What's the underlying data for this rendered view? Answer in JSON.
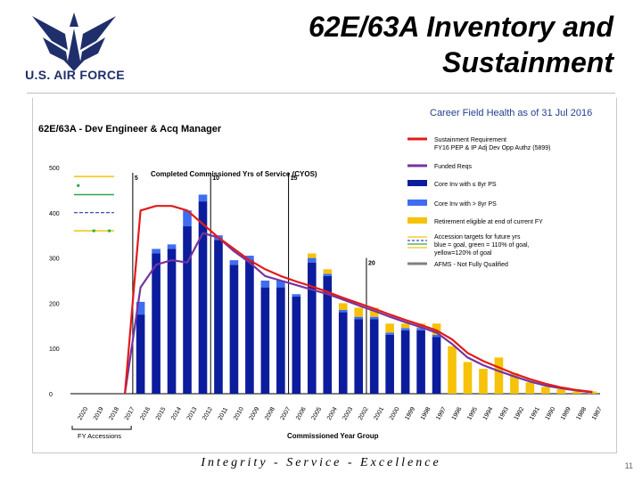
{
  "header": {
    "logo_text": "U.S. AIR FORCE",
    "title_line1": "62E/63A Inventory and",
    "title_line2": "Sustainment"
  },
  "footer": {
    "motto": "Integrity - Service - Excellence",
    "page_number": "11"
  },
  "chart_data": {
    "type": "bar",
    "title": "62E/63A - Dev Engineer & Acq Manager",
    "subtitle": "Career Field Health as of 31 Jul 2016",
    "plot_label": "Completed Commissioned Yrs of Service (CYOS)",
    "xlabel": "Commissioned Year Group",
    "ylabel": "",
    "accession_label": "FY Accessions",
    "ylim": [
      0,
      500
    ],
    "yticks": [
      0,
      100,
      200,
      300,
      400,
      500
    ],
    "categories": [
      "2020",
      "2019",
      "2018",
      "2017",
      "2016",
      "2015",
      "2014",
      "2013",
      "2012",
      "2011",
      "2010",
      "2009",
      "2008",
      "2007",
      "2006",
      "2005",
      "2004",
      "2003",
      "2002",
      "2001",
      "2000",
      "1999",
      "1998",
      "1997",
      "1996",
      "1995",
      "1994",
      "1993",
      "1992",
      "1991",
      "1990",
      "1989",
      "1988",
      "1987"
    ],
    "series": [
      {
        "name": "Core Inv with ≤ 8yr PS",
        "color": "#0b1d9c",
        "values": [
          0,
          0,
          0,
          0,
          175,
          310,
          320,
          370,
          425,
          340,
          285,
          295,
          235,
          235,
          215,
          290,
          260,
          180,
          165,
          165,
          130,
          140,
          140,
          125,
          0,
          0,
          0,
          0,
          0,
          0,
          0,
          0,
          0,
          0
        ]
      },
      {
        "name": "Core Inv with > 8yr PS",
        "color": "#3f6df2",
        "values": [
          0,
          0,
          0,
          0,
          28,
          10,
          10,
          35,
          15,
          10,
          10,
          10,
          15,
          15,
          5,
          10,
          5,
          5,
          5,
          5,
          5,
          5,
          5,
          5,
          0,
          0,
          0,
          0,
          0,
          0,
          0,
          0,
          0,
          0
        ]
      },
      {
        "name": "Retirement eligible at end of current FY",
        "color": "#f6c20a",
        "values": [
          0,
          0,
          0,
          0,
          0,
          0,
          0,
          0,
          0,
          0,
          0,
          0,
          0,
          0,
          0,
          10,
          10,
          15,
          20,
          20,
          20,
          10,
          10,
          25,
          105,
          70,
          55,
          80,
          45,
          25,
          15,
          10,
          5,
          5
        ]
      }
    ],
    "sustainment_requirement": {
      "name": "Sustainment Requirement FY16 PEP & IP Adj Dev Opp Authz (5899)",
      "color": "#e11b1b",
      "values": [
        null,
        null,
        null,
        0,
        405,
        415,
        415,
        405,
        375,
        345,
        320,
        295,
        275,
        260,
        248,
        237,
        225,
        212,
        200,
        188,
        175,
        163,
        152,
        140,
        120,
        90,
        72,
        58,
        44,
        32,
        22,
        14,
        8,
        4
      ]
    },
    "funded_reqs": {
      "name": "Funded Reqs",
      "color": "#7434a0",
      "values": [
        null,
        null,
        null,
        0,
        235,
        285,
        295,
        290,
        355,
        345,
        315,
        290,
        260,
        250,
        240,
        230,
        220,
        208,
        195,
        183,
        170,
        158,
        147,
        135,
        110,
        80,
        63,
        50,
        38,
        27,
        18,
        12,
        7,
        3
      ]
    },
    "accession_targets": {
      "name": "Accession targets for future yrs blue = goal, green = 110% of goal, yellow=120% of goal",
      "goal": 400,
      "green": 440,
      "yellow": 480,
      "green_dots": [
        460,
        360,
        360
      ]
    },
    "afms_label": "AFMS - Not Fully Qualified",
    "yos_markers": [
      "5",
      "10",
      "15",
      "20"
    ],
    "grid": false,
    "legend_position": "right"
  }
}
